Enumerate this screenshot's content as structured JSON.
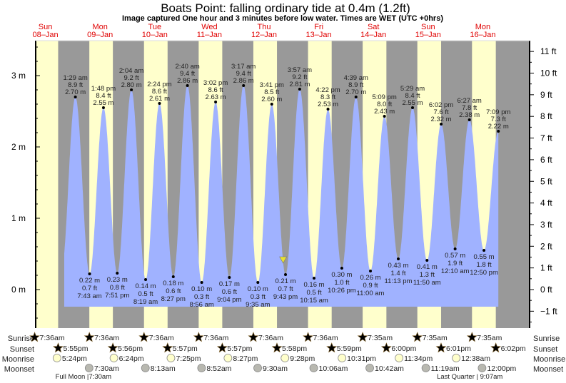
{
  "header": {
    "title": "Boats Point: falling  ordinary tide at 0.4m (1.2ft)",
    "subtitle": "Image captured One hour and 3 minutes before low water. Times are WET (UTC +0hrs)"
  },
  "colors": {
    "day": "#ffffcc",
    "night": "#999999",
    "water": "#a0b2ff",
    "day_label": "#e00000",
    "sunrise_star": "#b5b040",
    "sunset_star": "#d83020",
    "moonrise": "#ffffcc",
    "moonset": "#b8b8b0",
    "current_marker": "#e8e030"
  },
  "chart_data": {
    "type": "area",
    "title": "Boats Point: falling  ordinary tide at 0.4m (1.2ft)",
    "ylim_m": [
      -0.45,
      3.5
    ],
    "left_ticks": [
      "3 m",
      "2 m",
      "1 m",
      "0 m"
    ],
    "left_tick_values": [
      3,
      2,
      1,
      0
    ],
    "right_ticks": [
      "11 ft",
      "10 ft",
      "9 ft",
      "8 ft",
      "7 ft",
      "6 ft",
      "5 ft",
      "4 ft",
      "3 ft",
      "2 ft",
      "1 ft",
      "0 ft",
      "−1 ft"
    ],
    "right_tick_values": [
      11,
      10,
      9,
      8,
      7,
      6,
      5,
      4,
      3,
      2,
      1,
      0,
      -1
    ],
    "days": [
      {
        "dow": "Sun",
        "date": "08–Jan"
      },
      {
        "dow": "Mon",
        "date": "09–Jan"
      },
      {
        "dow": "Tue",
        "date": "10–Jan"
      },
      {
        "dow": "Wed",
        "date": "11–Jan"
      },
      {
        "dow": "Thu",
        "date": "12–Jan"
      },
      {
        "dow": "Fri",
        "date": "13–Jan"
      },
      {
        "dow": "Sat",
        "date": "14–Jan"
      },
      {
        "dow": "Sun",
        "date": "15–Jan"
      },
      {
        "dow": "Mon",
        "date": "16–Jan"
      }
    ],
    "current": {
      "at": "01-12 20:40",
      "m": 0.4,
      "ft": 1.2
    },
    "extremes": [
      {
        "type": "high",
        "at": "01-09 01:29",
        "time": "1:29 am",
        "ft": "8.9 ft",
        "m": "2.70 m",
        "value": 2.7
      },
      {
        "type": "low",
        "at": "01-09 07:43",
        "time": "7:43 am",
        "ft": "0.7 ft",
        "m": "0.22 m",
        "value": 0.22
      },
      {
        "type": "high",
        "at": "01-09 13:48",
        "time": "1:48 pm",
        "ft": "8.4 ft",
        "m": "2.55 m",
        "value": 2.55
      },
      {
        "type": "low",
        "at": "01-09 19:51",
        "time": "7:51 pm",
        "ft": "0.8 ft",
        "m": "0.23 m",
        "value": 0.23
      },
      {
        "type": "high",
        "at": "01-10 02:04",
        "time": "2:04 am",
        "ft": "9.2 ft",
        "m": "2.80 m",
        "value": 2.8
      },
      {
        "type": "low",
        "at": "01-10 08:19",
        "time": "8:19 am",
        "ft": "0.5 ft",
        "m": "0.14 m",
        "value": 0.14
      },
      {
        "type": "high",
        "at": "01-10 14:24",
        "time": "2:24 pm",
        "ft": "8.6 ft",
        "m": "2.61 m",
        "value": 2.61
      },
      {
        "type": "low",
        "at": "01-10 20:27",
        "time": "8:27 pm",
        "ft": "0.6 ft",
        "m": "0.18 m",
        "value": 0.18
      },
      {
        "type": "high",
        "at": "01-11 02:40",
        "time": "2:40 am",
        "ft": "9.4 ft",
        "m": "2.86 m",
        "value": 2.86
      },
      {
        "type": "low",
        "at": "01-11 08:56",
        "time": "8:56 am",
        "ft": "0.3 ft",
        "m": "0.10 m",
        "value": 0.1
      },
      {
        "type": "high",
        "at": "01-11 15:02",
        "time": "3:02 pm",
        "ft": "8.6 ft",
        "m": "2.63 m",
        "value": 2.63
      },
      {
        "type": "low",
        "at": "01-11 21:04",
        "time": "9:04 pm",
        "ft": "0.6 ft",
        "m": "0.17 m",
        "value": 0.17
      },
      {
        "type": "high",
        "at": "01-12 03:17",
        "time": "3:17 am",
        "ft": "9.4 ft",
        "m": "2.86 m",
        "value": 2.86
      },
      {
        "type": "low",
        "at": "01-12 09:35",
        "time": "9:35 am",
        "ft": "0.3 ft",
        "m": "0.10 m",
        "value": 0.1
      },
      {
        "type": "high",
        "at": "01-12 15:41",
        "time": "3:41 pm",
        "ft": "8.5 ft",
        "m": "2.60 m",
        "value": 2.6
      },
      {
        "type": "low",
        "at": "01-12 21:43",
        "time": "9:43 pm",
        "ft": "0.7 ft",
        "m": "0.21 m",
        "value": 0.21
      },
      {
        "type": "high",
        "at": "01-13 03:57",
        "time": "3:57 am",
        "ft": "9.2 ft",
        "m": "2.81 m",
        "value": 2.81
      },
      {
        "type": "low",
        "at": "01-13 10:15",
        "time": "10:15 am",
        "ft": "0.5 ft",
        "m": "0.16 m",
        "value": 0.16
      },
      {
        "type": "high",
        "at": "01-13 16:22",
        "time": "4:22 pm",
        "ft": "8.3 ft",
        "m": "2.53 m",
        "value": 2.53
      },
      {
        "type": "low",
        "at": "01-13 22:26",
        "time": "10:26 pm",
        "ft": "1.0 ft",
        "m": "0.30 m",
        "value": 0.3
      },
      {
        "type": "high",
        "at": "01-14 04:39",
        "time": "4:39 am",
        "ft": "8.9 ft",
        "m": "2.70 m",
        "value": 2.7
      },
      {
        "type": "low",
        "at": "01-14 11:00",
        "time": "11:00 am",
        "ft": "0.9 ft",
        "m": "0.26 m",
        "value": 0.26
      },
      {
        "type": "high",
        "at": "01-14 17:09",
        "time": "5:09 pm",
        "ft": "8.0 ft",
        "m": "2.43 m",
        "value": 2.43
      },
      {
        "type": "low",
        "at": "01-14 23:13",
        "time": "11:13 pm",
        "ft": "1.4 ft",
        "m": "0.43 m",
        "value": 0.43
      },
      {
        "type": "high",
        "at": "01-15 05:29",
        "time": "5:29 am",
        "ft": "8.4 ft",
        "m": "2.55 m",
        "value": 2.55
      },
      {
        "type": "low",
        "at": "01-15 11:50",
        "time": "11:50 am",
        "ft": "1.3 ft",
        "m": "0.41 m",
        "value": 0.41
      },
      {
        "type": "high",
        "at": "01-15 18:02",
        "time": "6:02 pm",
        "ft": "7.6 ft",
        "m": "2.32 m",
        "value": 2.32
      },
      {
        "type": "low",
        "at": "01-16 00:10",
        "time": "12:10 am",
        "ft": "1.9 ft",
        "m": "0.57 m",
        "value": 0.57
      },
      {
        "type": "high",
        "at": "01-16 06:27",
        "time": "6:27 am",
        "ft": "7.8 ft",
        "m": "2.38 m",
        "value": 2.38
      },
      {
        "type": "low",
        "at": "01-16 12:50",
        "time": "12:50 pm",
        "ft": "1.8 ft",
        "m": "0.55 m",
        "value": 0.55
      },
      {
        "type": "high",
        "at": "01-16 19:09",
        "time": "7:09 pm",
        "ft": "7.3 ft",
        "m": "2.22 m",
        "value": 2.22
      }
    ]
  },
  "astro": {
    "row_labels": {
      "sunrise": "Sunrise",
      "sunset": "Sunset",
      "moonrise": "Moonrise",
      "moonset": "Moonset"
    },
    "sunrise": [
      {
        "at": "01-08 07:36",
        "label": "7:36am"
      },
      {
        "at": "01-09 07:36",
        "label": "7:36am"
      },
      {
        "at": "01-10 07:36",
        "label": "7:36am"
      },
      {
        "at": "01-11 07:36",
        "label": "7:36am"
      },
      {
        "at": "01-12 07:36",
        "label": "7:36am"
      },
      {
        "at": "01-13 07:36",
        "label": "7:36am"
      },
      {
        "at": "01-14 07:35",
        "label": "7:35am"
      },
      {
        "at": "01-15 07:35",
        "label": "7:35am"
      },
      {
        "at": "01-16 07:35",
        "label": "7:35am"
      }
    ],
    "sunset": [
      {
        "at": "01-08 17:55",
        "label": "5:55pm"
      },
      {
        "at": "01-09 17:56",
        "label": "5:56pm"
      },
      {
        "at": "01-10 17:57",
        "label": "5:57pm"
      },
      {
        "at": "01-11 17:57",
        "label": "5:57pm"
      },
      {
        "at": "01-12 17:58",
        "label": "5:58pm"
      },
      {
        "at": "01-13 17:59",
        "label": "5:59pm"
      },
      {
        "at": "01-14 18:00",
        "label": "6:00pm"
      },
      {
        "at": "01-15 18:01",
        "label": "6:01pm"
      },
      {
        "at": "01-16 18:02",
        "label": "6:02pm"
      }
    ],
    "moonrise": [
      {
        "at": "01-08 17:24",
        "label": "5:24pm"
      },
      {
        "at": "01-09 18:24",
        "label": "6:24pm"
      },
      {
        "at": "01-10 19:25",
        "label": "7:25pm"
      },
      {
        "at": "01-11 20:27",
        "label": "8:27pm"
      },
      {
        "at": "01-12 21:28",
        "label": "9:28pm"
      },
      {
        "at": "01-13 22:31",
        "label": "10:31pm"
      },
      {
        "at": "01-14 23:34",
        "label": "11:34pm"
      },
      {
        "at": "01-16 00:38",
        "label": "12:38am"
      }
    ],
    "moonset": [
      {
        "at": "01-09 07:30",
        "label": "7:30am"
      },
      {
        "at": "01-10 08:13",
        "label": "8:13am"
      },
      {
        "at": "01-11 08:52",
        "label": "8:52am"
      },
      {
        "at": "01-12 09:30",
        "label": "9:30am"
      },
      {
        "at": "01-13 10:06",
        "label": "10:06am"
      },
      {
        "at": "01-14 10:42",
        "label": "10:42am"
      },
      {
        "at": "01-15 11:19",
        "label": "11:19am"
      },
      {
        "at": "01-16 12:00",
        "label": "12:00pm"
      }
    ],
    "phases": [
      {
        "at": "01-09 07:30",
        "label": "Full Moon |7:30am"
      },
      {
        "at": "01-16 09:07",
        "label": "Last Quarter | 9:07am"
      }
    ]
  }
}
